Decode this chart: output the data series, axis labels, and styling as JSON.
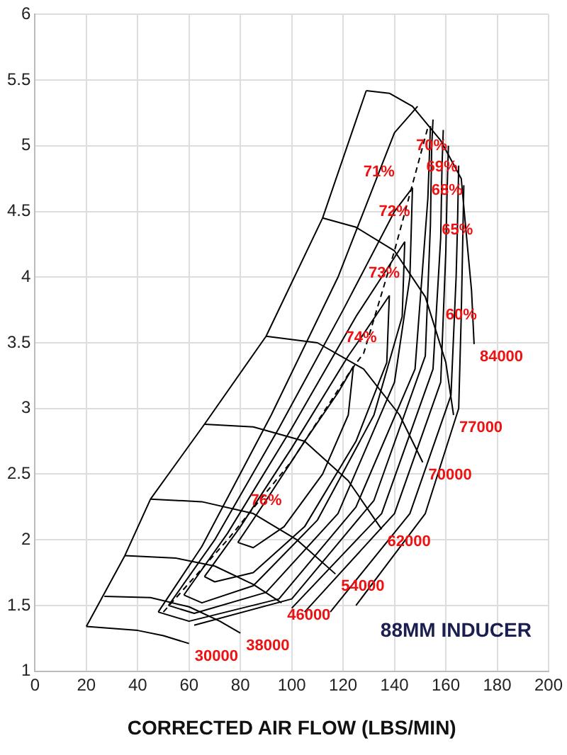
{
  "chart_data": {
    "type": "line",
    "xlabel": "CORRECTED AIR FLOW (LBS/MIN)",
    "xlim": [
      0,
      200
    ],
    "xticks": [
      0,
      20,
      40,
      60,
      80,
      100,
      120,
      140,
      160,
      180,
      200
    ],
    "ylim": [
      1,
      6
    ],
    "yticks": [
      1,
      1.5,
      2,
      2.5,
      3,
      3.5,
      4,
      4.5,
      5,
      5.5,
      6
    ],
    "grid": true,
    "legend": false,
    "marker": "none",
    "series": [
      {
        "color": "#000000",
        "line_style": "solid",
        "x": [
          20,
          35,
          45,
          66,
          90,
          112,
          129
        ],
        "values": [
          1.34,
          1.88,
          2.31,
          2.88,
          3.55,
          4.45,
          5.42
        ]
      },
      {
        "color": "#000000",
        "line_style": "solid",
        "x": [
          20,
          40,
          50,
          60
        ],
        "values": [
          1.34,
          1.31,
          1.27,
          1.21
        ]
      },
      {
        "color": "#000000",
        "line_style": "solid",
        "x": [
          27,
          45,
          60,
          72,
          80
        ],
        "values": [
          1.57,
          1.56,
          1.49,
          1.38,
          1.29
        ]
      },
      {
        "color": "#000000",
        "line_style": "solid",
        "x": [
          35,
          55,
          70,
          85,
          96
        ],
        "values": [
          1.88,
          1.86,
          1.8,
          1.66,
          1.52
        ]
      },
      {
        "color": "#000000",
        "line_style": "solid",
        "x": [
          45,
          65,
          85,
          102,
          117
        ],
        "values": [
          2.31,
          2.29,
          2.2,
          2,
          1.74
        ]
      },
      {
        "color": "#000000",
        "line_style": "solid",
        "x": [
          66,
          85,
          105,
          122,
          135
        ],
        "values": [
          2.88,
          2.86,
          2.75,
          2.45,
          2.08
        ]
      },
      {
        "color": "#000000",
        "line_style": "solid",
        "x": [
          90,
          110,
          128,
          142,
          151
        ],
        "values": [
          3.55,
          3.5,
          3.3,
          2.95,
          2.59
        ]
      },
      {
        "color": "#000000",
        "line_style": "solid",
        "x": [
          112,
          125,
          140,
          152,
          160,
          163
        ],
        "values": [
          4.45,
          4.38,
          4.2,
          3.85,
          3.35,
          2.95
        ]
      },
      {
        "color": "#000000",
        "line_style": "solid",
        "x": [
          129,
          138,
          147,
          158,
          166,
          168,
          170,
          171
        ],
        "values": [
          5.42,
          5.4,
          5.3,
          5.04,
          4.75,
          4.32,
          3.9,
          3.49
        ]
      },
      {
        "color": "#000000",
        "line_style": "solid",
        "x": [
          79,
          90,
          105,
          118,
          124
        ],
        "values": [
          1.98,
          2.3,
          2.75,
          3.12,
          3.32
        ]
      },
      {
        "color": "#000000",
        "line_style": "solid",
        "x": [
          79,
          85,
          97,
          112,
          122,
          124
        ],
        "values": [
          1.98,
          1.94,
          2.1,
          2.5,
          2.95,
          3.32
        ]
      },
      {
        "color": "#000000",
        "line_style": "solid",
        "x": [
          66,
          80,
          100,
          122,
          127,
          138
        ],
        "values": [
          1.72,
          2.1,
          2.7,
          3.4,
          3.54,
          3.86
        ]
      },
      {
        "color": "#000000",
        "line_style": "solid",
        "x": [
          66,
          70,
          85,
          105,
          125,
          137,
          138
        ],
        "values": [
          1.72,
          1.68,
          1.75,
          2.1,
          2.75,
          3.35,
          3.86
        ]
      },
      {
        "color": "#000000",
        "line_style": "solid",
        "x": [
          58,
          75,
          100,
          125,
          136,
          144
        ],
        "values": [
          1.58,
          2.05,
          2.85,
          3.7,
          4.03,
          4.27
        ]
      },
      {
        "color": "#000000",
        "line_style": "solid",
        "x": [
          58,
          65,
          85,
          110,
          132,
          143,
          144
        ],
        "values": [
          1.58,
          1.52,
          1.65,
          2.15,
          2.95,
          3.7,
          4.27
        ]
      },
      {
        "color": "#000000",
        "line_style": "solid",
        "x": [
          52,
          70,
          95,
          120,
          140,
          147
        ],
        "values": [
          1.5,
          2,
          2.85,
          3.75,
          4.5,
          4.68
        ]
      },
      {
        "color": "#000000",
        "line_style": "solid",
        "x": [
          52,
          62,
          90,
          118,
          140,
          146,
          147
        ],
        "values": [
          1.5,
          1.44,
          1.6,
          2.2,
          3.2,
          4,
          4.68
        ]
      },
      {
        "color": "#000000",
        "line_style": "solid",
        "x": [
          48,
          65,
          92,
          118,
          134,
          140,
          149
        ],
        "values": [
          1.45,
          1.95,
          2.95,
          4,
          4.8,
          5.1,
          5.3
        ]
      },
      {
        "color": "#000000",
        "line_style": "solid",
        "x": [
          48,
          60,
          95,
          125,
          148,
          153,
          154
        ],
        "values": [
          1.45,
          1.38,
          1.55,
          2.25,
          3.3,
          4.6,
          5.15
        ]
      },
      {
        "color": "#000000",
        "line_style": "solid",
        "x": [
          62,
          100,
          132,
          152,
          154,
          154.5,
          155
        ],
        "values": [
          1.35,
          1.55,
          2.3,
          3.4,
          4.4,
          5,
          5.2
        ]
      },
      {
        "color": "#000000",
        "line_style": "solid",
        "x": [
          100,
          135,
          155,
          158,
          158.5,
          159
        ],
        "values": [
          1.48,
          2.2,
          3.3,
          4.3,
          4.84,
          5.12
        ]
      },
      {
        "color": "#000000",
        "line_style": "solid",
        "x": [
          105,
          140,
          158,
          160,
          160.5,
          161
        ],
        "values": [
          1.45,
          2.2,
          3.2,
          4.2,
          4.66,
          5
        ]
      },
      {
        "color": "#000000",
        "line_style": "solid",
        "x": [
          115,
          146,
          162,
          164,
          164.5,
          165
        ],
        "values": [
          1.45,
          2.2,
          3.1,
          4,
          4.36,
          4.85
        ]
      },
      {
        "color": "#000000",
        "line_style": "solid",
        "x": [
          125,
          152,
          165,
          166,
          166.5,
          167
        ],
        "values": [
          1.5,
          2.2,
          3,
          3.71,
          4.2,
          4.7
        ]
      },
      {
        "color": "#000000",
        "line_style": "dashed",
        "x": [
          50,
          75,
          100,
          123,
          128,
          140,
          153
        ],
        "values": [
          1.45,
          2,
          2.6,
          3.29,
          3.42,
          4.2,
          5.14
        ]
      }
    ],
    "annotations": [
      {
        "text": "30000",
        "x": 60,
        "y": 1.21
      },
      {
        "text": "38000",
        "x": 80,
        "y": 1.29
      },
      {
        "text": "46000",
        "x": 96,
        "y": 1.52
      },
      {
        "text": "54000",
        "x": 117,
        "y": 1.74
      },
      {
        "text": "62000",
        "x": 135,
        "y": 2.08
      },
      {
        "text": "70000",
        "x": 151,
        "y": 2.59
      },
      {
        "text": "77000",
        "x": 163,
        "y": 2.95
      },
      {
        "text": "84000",
        "x": 171,
        "y": 3.49
      },
      {
        "text": "70%",
        "x": 154.5,
        "y": 5
      },
      {
        "text": "71%",
        "x": 134,
        "y": 4.8
      },
      {
        "text": "69%",
        "x": 158.5,
        "y": 4.84
      },
      {
        "text": "68%",
        "x": 160.5,
        "y": 4.66
      },
      {
        "text": "72%",
        "x": 140,
        "y": 4.5
      },
      {
        "text": "65%",
        "x": 164.5,
        "y": 4.36
      },
      {
        "text": "73%",
        "x": 136,
        "y": 4.03
      },
      {
        "text": "60%",
        "x": 166,
        "y": 3.71
      },
      {
        "text": "74%",
        "x": 127,
        "y": 3.54
      },
      {
        "text": "76%",
        "x": 90,
        "y": 2.3
      },
      "88MM INDUCER"
    ]
  }
}
